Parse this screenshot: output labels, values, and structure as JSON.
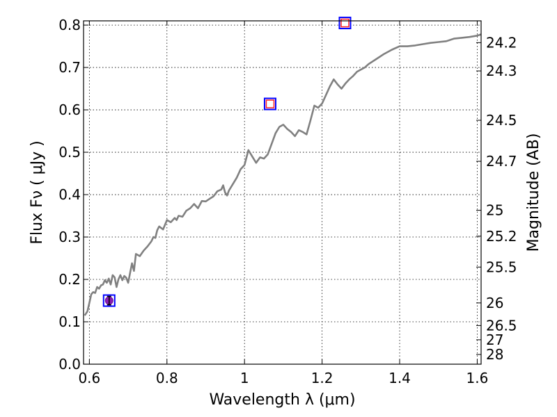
{
  "chart_data": {
    "type": "line",
    "xlabel": "Wavelength  λ (μm)",
    "ylabel": "Flux  Fν  ( μJy )",
    "ylabel_right": "Magnitude (AB)",
    "xlim": [
      0.585,
      1.61
    ],
    "ylim": [
      0.0,
      0.81
    ],
    "grid": true,
    "x_ticks": [
      {
        "value": 0.6,
        "label": "0.6"
      },
      {
        "value": 0.8,
        "label": "0.8"
      },
      {
        "value": 1.0,
        "label": "1"
      },
      {
        "value": 1.2,
        "label": "1.2"
      },
      {
        "value": 1.4,
        "label": "1.4"
      },
      {
        "value": 1.6,
        "label": "1.6"
      }
    ],
    "y_ticks": [
      {
        "value": 0.0,
        "label": "0.0"
      },
      {
        "value": 0.1,
        "label": "0.1"
      },
      {
        "value": 0.2,
        "label": "0.2"
      },
      {
        "value": 0.3,
        "label": "0.3"
      },
      {
        "value": 0.4,
        "label": "0.4"
      },
      {
        "value": 0.5,
        "label": "0.5"
      },
      {
        "value": 0.6,
        "label": "0.6"
      },
      {
        "value": 0.7,
        "label": "0.7"
      },
      {
        "value": 0.8,
        "label": "0.8"
      }
    ],
    "right_ticks": [
      {
        "value": 24.2,
        "label": "24.2"
      },
      {
        "value": 24.3,
        "label": "24.3"
      },
      {
        "value": 24.5,
        "label": "24.5"
      },
      {
        "value": 24.7,
        "label": "24.7"
      },
      {
        "value": 25.0,
        "label": "25"
      },
      {
        "value": 25.2,
        "label": "25.2"
      },
      {
        "value": 25.5,
        "label": "25.5"
      },
      {
        "value": 26.0,
        "label": "26"
      },
      {
        "value": 26.5,
        "label": "26.5"
      },
      {
        "value": 27.0,
        "label": "27"
      },
      {
        "value": 28.0,
        "label": "28"
      }
    ],
    "series": [
      {
        "color": "#808080",
        "x": [
          0.588,
          0.595,
          0.6,
          0.605,
          0.61,
          0.615,
          0.62,
          0.625,
          0.63,
          0.635,
          0.64,
          0.645,
          0.65,
          0.655,
          0.66,
          0.665,
          0.67,
          0.675,
          0.68,
          0.685,
          0.69,
          0.695,
          0.7,
          0.705,
          0.71,
          0.715,
          0.72,
          0.73,
          0.74,
          0.75,
          0.76,
          0.765,
          0.77,
          0.775,
          0.78,
          0.79,
          0.8,
          0.81,
          0.82,
          0.825,
          0.83,
          0.84,
          0.85,
          0.86,
          0.87,
          0.88,
          0.89,
          0.9,
          0.91,
          0.92,
          0.93,
          0.94,
          0.945,
          0.95,
          0.955,
          0.96,
          0.97,
          0.98,
          0.99,
          1.0,
          1.01,
          1.02,
          1.03,
          1.04,
          1.05,
          1.06,
          1.07,
          1.08,
          1.09,
          1.1,
          1.11,
          1.12,
          1.13,
          1.14,
          1.15,
          1.16,
          1.17,
          1.18,
          1.19,
          1.2,
          1.21,
          1.22,
          1.23,
          1.24,
          1.25,
          1.26,
          1.27,
          1.28,
          1.29,
          1.3,
          1.31,
          1.32,
          1.34,
          1.36,
          1.38,
          1.4,
          1.42,
          1.44,
          1.46,
          1.48,
          1.5,
          1.52,
          1.54,
          1.56,
          1.58,
          1.6,
          1.61
        ],
        "y": [
          0.115,
          0.125,
          0.145,
          0.165,
          0.17,
          0.168,
          0.182,
          0.178,
          0.186,
          0.188,
          0.198,
          0.192,
          0.202,
          0.188,
          0.21,
          0.205,
          0.182,
          0.2,
          0.21,
          0.198,
          0.208,
          0.204,
          0.192,
          0.215,
          0.238,
          0.22,
          0.26,
          0.255,
          0.268,
          0.278,
          0.29,
          0.3,
          0.298,
          0.316,
          0.325,
          0.318,
          0.34,
          0.335,
          0.345,
          0.34,
          0.35,
          0.348,
          0.362,
          0.368,
          0.378,
          0.368,
          0.385,
          0.384,
          0.39,
          0.396,
          0.408,
          0.412,
          0.422,
          0.405,
          0.398,
          0.41,
          0.425,
          0.44,
          0.46,
          0.47,
          0.505,
          0.49,
          0.475,
          0.488,
          0.485,
          0.495,
          0.52,
          0.545,
          0.56,
          0.565,
          0.555,
          0.548,
          0.538,
          0.552,
          0.548,
          0.542,
          0.575,
          0.61,
          0.605,
          0.615,
          0.635,
          0.655,
          0.672,
          0.66,
          0.65,
          0.662,
          0.672,
          0.68,
          0.69,
          0.695,
          0.7,
          0.708,
          0.72,
          0.732,
          0.742,
          0.75,
          0.75,
          0.752,
          0.755,
          0.758,
          0.76,
          0.762,
          0.768,
          0.77,
          0.772,
          0.775,
          0.778
        ]
      }
    ],
    "markers": [
      {
        "x": 0.651,
        "y": 0.15,
        "kind": "filled",
        "err": 0.01
      },
      {
        "x": 1.066,
        "y": 0.614,
        "kind": "open"
      },
      {
        "x": 1.259,
        "y": 0.805,
        "kind": "open"
      }
    ]
  }
}
